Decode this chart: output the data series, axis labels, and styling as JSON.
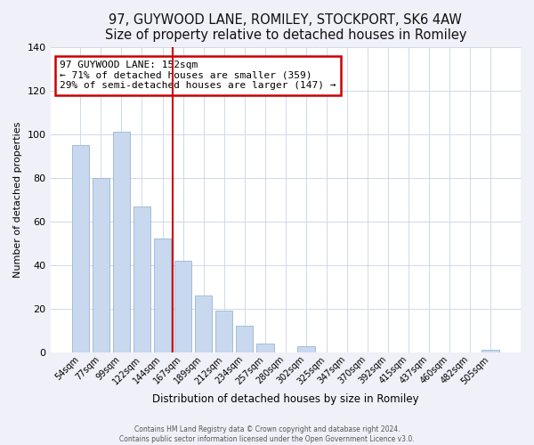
{
  "title": "97, GUYWOOD LANE, ROMILEY, STOCKPORT, SK6 4AW",
  "subtitle": "Size of property relative to detached houses in Romiley",
  "xlabel": "Distribution of detached houses by size in Romiley",
  "ylabel": "Number of detached properties",
  "bar_labels": [
    "54sqm",
    "77sqm",
    "99sqm",
    "122sqm",
    "144sqm",
    "167sqm",
    "189sqm",
    "212sqm",
    "234sqm",
    "257sqm",
    "280sqm",
    "302sqm",
    "325sqm",
    "347sqm",
    "370sqm",
    "392sqm",
    "415sqm",
    "437sqm",
    "460sqm",
    "482sqm",
    "505sqm"
  ],
  "bar_values": [
    95,
    80,
    101,
    67,
    52,
    42,
    26,
    19,
    12,
    4,
    0,
    3,
    0,
    0,
    0,
    0,
    0,
    0,
    0,
    0,
    1
  ],
  "bar_color": "#c8d8ee",
  "bar_edge_color": "#9ab5d5",
  "ylim": [
    0,
    140
  ],
  "yticks": [
    0,
    20,
    40,
    60,
    80,
    100,
    120,
    140
  ],
  "annotation_title": "97 GUYWOOD LANE: 152sqm",
  "annotation_line1": "← 71% of detached houses are smaller (359)",
  "annotation_line2": "29% of semi-detached houses are larger (147) →",
  "annotation_box_color": "#ffffff",
  "annotation_box_edge": "#cc0000",
  "marker_line_color": "#cc0000",
  "footer_line1": "Contains HM Land Registry data © Crown copyright and database right 2024.",
  "footer_line2": "Contains public sector information licensed under the Open Government Licence v3.0.",
  "background_color": "#f0f0f8",
  "plot_bg_color": "#ffffff",
  "grid_color": "#d0d8e8",
  "title_fontsize": 10.5,
  "subtitle_fontsize": 9
}
